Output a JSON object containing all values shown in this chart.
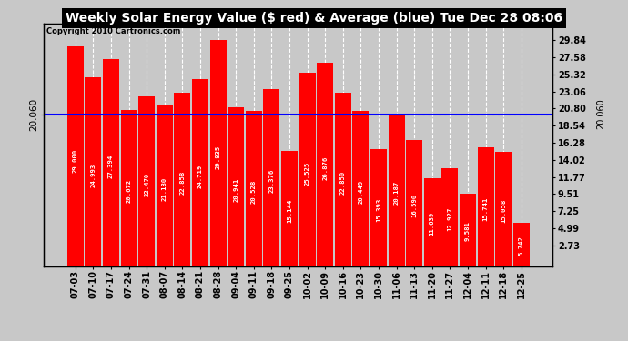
{
  "title": "Weekly Solar Energy Value ($ red) & Average (blue) Tue Dec 28 08:06",
  "copyright": "Copyright 2010 Cartronics.com",
  "bar_color": "#ff0000",
  "average_color": "#0000ff",
  "average_value": 20.06,
  "background_color": "#c8c8c8",
  "plot_bg_color": "#c8c8c8",
  "title_bg_color": "#000000",
  "title_text_color": "#ffffff",
  "categories": [
    "07-03",
    "07-10",
    "07-17",
    "07-24",
    "07-31",
    "08-07",
    "08-14",
    "08-21",
    "08-28",
    "09-04",
    "09-11",
    "09-18",
    "09-25",
    "10-02",
    "10-09",
    "10-16",
    "10-23",
    "10-30",
    "11-06",
    "11-13",
    "11-20",
    "11-27",
    "12-04",
    "12-11",
    "12-18",
    "12-25"
  ],
  "values": [
    29.0,
    24.993,
    27.394,
    20.672,
    22.47,
    21.18,
    22.858,
    24.719,
    29.835,
    20.941,
    20.528,
    23.376,
    15.144,
    25.525,
    26.876,
    22.85,
    20.449,
    15.393,
    20.187,
    16.59,
    11.639,
    12.927,
    9.581,
    15.741,
    15.058,
    5.742
  ],
  "bar_labels": [
    "29.000",
    "24.993",
    "27.394",
    "20.672",
    "22.470",
    "21.180",
    "22.858",
    "24.719",
    "29.835",
    "20.941",
    "20.528",
    "23.376",
    "15.144",
    "25.525",
    "26.876",
    "22.850",
    "20.449",
    "15.393",
    "20.187",
    "16.590",
    "11.639",
    "12.927",
    "9.581",
    "15.741",
    "15.058",
    "5.742"
  ],
  "ymax": 32,
  "yticks_right": [
    2.73,
    4.99,
    7.25,
    9.51,
    11.77,
    14.02,
    16.28,
    18.54,
    20.8,
    23.06,
    25.32,
    27.58,
    29.84
  ],
  "grid_color": "#ffffff",
  "title_fontsize": 10,
  "label_fontsize": 5.2,
  "tick_fontsize": 7,
  "copyright_fontsize": 6
}
